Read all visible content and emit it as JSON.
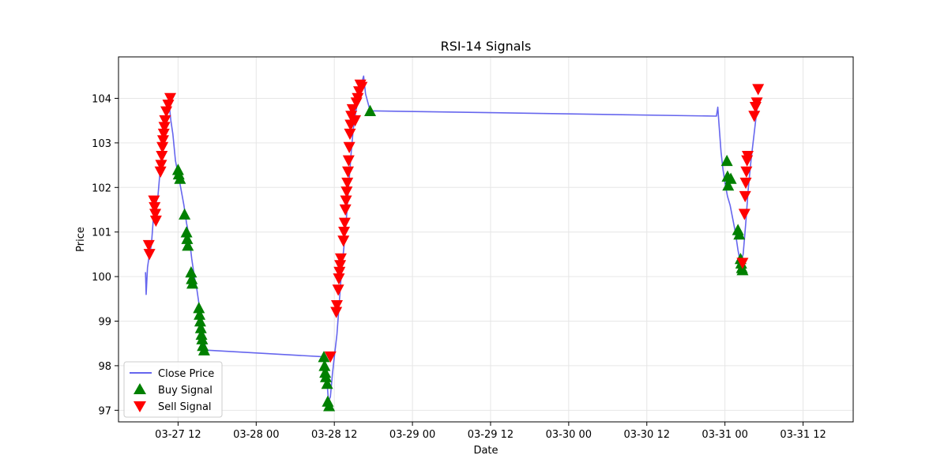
{
  "chart_data": {
    "type": "line",
    "title": "RSI-14 Signals",
    "xlabel": "Date",
    "ylabel": "Price",
    "grid": true,
    "legend_position": "lower-left",
    "x_tick_labels": [
      "03-27 12",
      "03-28 00",
      "03-28 12",
      "03-29 00",
      "03-29 12",
      "03-30 00",
      "03-30 12",
      "03-31 00",
      "03-31 12"
    ],
    "x_tick_hours": [
      12,
      24,
      36,
      48,
      60,
      72,
      84,
      96,
      108
    ],
    "x_axis_start": "03-27 00",
    "xlim": [
      2.85,
      115.7
    ],
    "ylim": [
      96.74,
      104.93
    ],
    "y_ticks": [
      97,
      98,
      99,
      100,
      101,
      102,
      103,
      104
    ],
    "colors": {
      "close": "#6666ee",
      "buy": "#008000",
      "sell": "#ff0000",
      "grid": "#e6e6e6"
    },
    "series": [
      {
        "name": "Close Price",
        "kind": "line",
        "points": [
          [
            7.0,
            100.1
          ],
          [
            7.1,
            99.6
          ],
          [
            7.3,
            100.2
          ],
          [
            7.6,
            100.5
          ],
          [
            7.9,
            100.7
          ],
          [
            8.2,
            101.3
          ],
          [
            8.5,
            101.6
          ],
          [
            8.9,
            101.8
          ],
          [
            9.2,
            102.3
          ],
          [
            9.4,
            102.6
          ],
          [
            9.7,
            103.1
          ],
          [
            10.0,
            103.5
          ],
          [
            10.3,
            103.7
          ],
          [
            10.6,
            103.9
          ],
          [
            10.9,
            103.5
          ],
          [
            11.2,
            103.2
          ],
          [
            11.6,
            102.6
          ],
          [
            12.0,
            102.3
          ],
          [
            12.4,
            102.0
          ],
          [
            12.9,
            101.6
          ],
          [
            13.3,
            101.2
          ],
          [
            13.7,
            100.9
          ],
          [
            14.1,
            100.4
          ],
          [
            14.5,
            100.0
          ],
          [
            14.9,
            99.7
          ],
          [
            15.3,
            99.3
          ],
          [
            15.7,
            98.9
          ],
          [
            16.0,
            98.6
          ],
          [
            16.3,
            98.35
          ],
          [
            34.3,
            98.2
          ],
          [
            34.6,
            98.0
          ],
          [
            34.9,
            97.6
          ],
          [
            35.1,
            97.2
          ],
          [
            35.4,
            97.3
          ],
          [
            35.7,
            97.8
          ],
          [
            36.0,
            98.2
          ],
          [
            36.4,
            98.7
          ],
          [
            36.7,
            99.3
          ],
          [
            37.0,
            99.9
          ],
          [
            37.3,
            100.4
          ],
          [
            37.7,
            101.0
          ],
          [
            38.0,
            101.6
          ],
          [
            38.3,
            102.2
          ],
          [
            38.6,
            102.8
          ],
          [
            38.9,
            103.3
          ],
          [
            39.3,
            103.7
          ],
          [
            39.7,
            104.0
          ],
          [
            40.1,
            104.3
          ],
          [
            40.5,
            104.5
          ],
          [
            40.8,
            104.1
          ],
          [
            41.5,
            103.72
          ],
          [
            94.7,
            103.6
          ],
          [
            94.9,
            103.8
          ],
          [
            95.1,
            103.4
          ],
          [
            95.4,
            102.8
          ],
          [
            95.7,
            102.4
          ],
          [
            96.0,
            102.1
          ],
          [
            96.4,
            101.8
          ],
          [
            96.8,
            101.6
          ],
          [
            97.2,
            101.3
          ],
          [
            97.6,
            101.0
          ],
          [
            98.0,
            100.6
          ],
          [
            98.4,
            100.3
          ],
          [
            98.8,
            100.5
          ],
          [
            99.2,
            101.2
          ],
          [
            99.6,
            102.0
          ],
          [
            100.0,
            102.6
          ],
          [
            100.4,
            103.1
          ],
          [
            100.8,
            103.6
          ],
          [
            101.1,
            104.0
          ]
        ]
      },
      {
        "name": "Buy Signal",
        "kind": "scatter",
        "marker": "triangle-up",
        "points": [
          [
            12.0,
            102.4
          ],
          [
            12.1,
            102.3
          ],
          [
            12.3,
            102.2
          ],
          [
            13.0,
            101.4
          ],
          [
            13.3,
            101.0
          ],
          [
            13.4,
            100.85
          ],
          [
            13.5,
            100.7
          ],
          [
            14.0,
            100.1
          ],
          [
            14.1,
            99.95
          ],
          [
            14.2,
            99.85
          ],
          [
            15.2,
            99.3
          ],
          [
            15.3,
            99.15
          ],
          [
            15.4,
            99.0
          ],
          [
            15.5,
            98.85
          ],
          [
            15.6,
            98.7
          ],
          [
            15.7,
            98.6
          ],
          [
            15.8,
            98.45
          ],
          [
            16.0,
            98.35
          ],
          [
            34.4,
            98.2
          ],
          [
            34.5,
            98.0
          ],
          [
            34.6,
            97.85
          ],
          [
            34.7,
            97.75
          ],
          [
            34.9,
            97.6
          ],
          [
            35.0,
            97.2
          ],
          [
            35.2,
            97.1
          ],
          [
            41.5,
            103.72
          ],
          [
            96.3,
            102.6
          ],
          [
            96.4,
            102.25
          ],
          [
            96.5,
            102.05
          ],
          [
            96.9,
            102.2
          ],
          [
            98.0,
            101.05
          ],
          [
            98.2,
            100.95
          ],
          [
            98.4,
            100.4
          ],
          [
            98.5,
            100.3
          ],
          [
            98.6,
            100.2
          ],
          [
            98.7,
            100.15
          ]
        ]
      },
      {
        "name": "Sell Signal",
        "kind": "scatter",
        "marker": "triangle-down",
        "points": [
          [
            7.5,
            100.7
          ],
          [
            7.6,
            100.5
          ],
          [
            8.3,
            101.7
          ],
          [
            8.4,
            101.55
          ],
          [
            8.5,
            101.4
          ],
          [
            8.6,
            101.25
          ],
          [
            9.3,
            102.35
          ],
          [
            9.4,
            102.5
          ],
          [
            9.5,
            102.7
          ],
          [
            9.6,
            102.9
          ],
          [
            9.7,
            103.05
          ],
          [
            9.8,
            103.2
          ],
          [
            9.9,
            103.35
          ],
          [
            10.0,
            103.5
          ],
          [
            10.2,
            103.7
          ],
          [
            10.5,
            103.85
          ],
          [
            10.8,
            104.0
          ],
          [
            35.4,
            98.2
          ],
          [
            36.3,
            99.2
          ],
          [
            36.4,
            99.35
          ],
          [
            36.6,
            99.7
          ],
          [
            36.7,
            99.95
          ],
          [
            36.8,
            100.1
          ],
          [
            36.9,
            100.25
          ],
          [
            37.0,
            100.4
          ],
          [
            37.4,
            100.8
          ],
          [
            37.5,
            101.0
          ],
          [
            37.6,
            101.2
          ],
          [
            37.7,
            101.5
          ],
          [
            37.8,
            101.7
          ],
          [
            37.9,
            101.9
          ],
          [
            38.0,
            102.1
          ],
          [
            38.1,
            102.35
          ],
          [
            38.2,
            102.6
          ],
          [
            38.3,
            102.9
          ],
          [
            38.4,
            103.2
          ],
          [
            38.5,
            103.4
          ],
          [
            38.6,
            103.6
          ],
          [
            38.8,
            103.75
          ],
          [
            39.2,
            103.5
          ],
          [
            39.4,
            103.9
          ],
          [
            39.6,
            104.0
          ],
          [
            39.8,
            104.15
          ],
          [
            40.0,
            104.3
          ],
          [
            40.2,
            104.25
          ],
          [
            98.7,
            100.3
          ],
          [
            99.0,
            101.4
          ],
          [
            99.1,
            101.8
          ],
          [
            99.2,
            102.1
          ],
          [
            99.3,
            102.35
          ],
          [
            99.4,
            102.6
          ],
          [
            99.5,
            102.7
          ],
          [
            100.5,
            103.6
          ],
          [
            100.7,
            103.8
          ],
          [
            100.9,
            103.9
          ],
          [
            101.1,
            104.2
          ]
        ]
      }
    ]
  }
}
